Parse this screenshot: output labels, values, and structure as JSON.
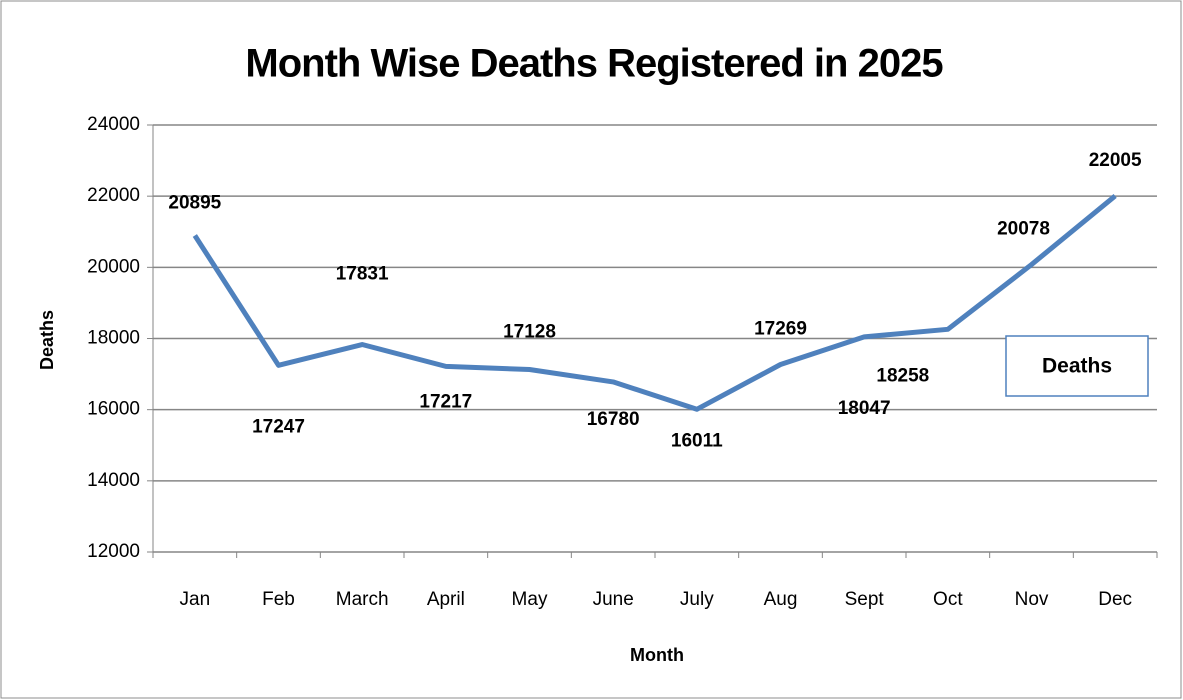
{
  "chart_data": {
    "type": "line",
    "title": "Month Wise Deaths Registered in 2025",
    "x_label": "Month",
    "y_label": "Deaths",
    "categories": [
      "Jan",
      "Feb",
      "March",
      "April",
      "May",
      "June",
      "July",
      "Aug",
      "Sept",
      "Oct",
      "Nov",
      "Dec"
    ],
    "series": [
      {
        "name": "Deaths",
        "color": "#4f81bd",
        "values": [
          20895,
          17247,
          17831,
          17217,
          17128,
          16780,
          16011,
          17269,
          18047,
          18258,
          20078,
          22005
        ]
      }
    ],
    "ylim": [
      12000,
      24000
    ],
    "yticks": [
      12000,
      14000,
      16000,
      18000,
      20000,
      22000,
      24000
    ],
    "grid": true,
    "legend": "right"
  }
}
